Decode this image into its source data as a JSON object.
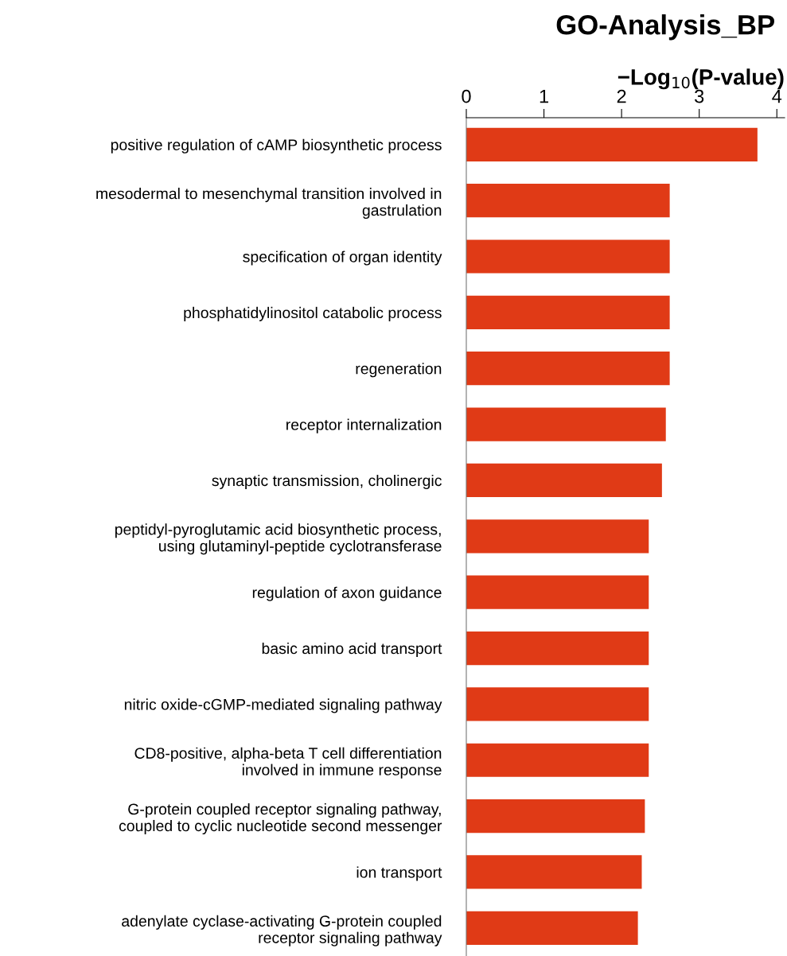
{
  "chart_data": {
    "type": "bar",
    "orientation": "horizontal",
    "title": "GO-Analysis_BP",
    "xlabel": "−Log$_{10}$(P-value)",
    "categories": [
      "positive regulation of cAMP biosynthetic process",
      "mesodermal to mesenchymal transition involved in\ngastrulation",
      "specification of organ identity",
      "phosphatidylinositol catabolic process",
      "regeneration",
      "receptor internalization",
      "synaptic transmission, cholinergic",
      "peptidyl-pyroglutamic acid biosynthetic process,\nusing glutaminyl-peptide cyclotransferase",
      "regulation of axon guidance",
      "basic amino acid transport",
      "nitric oxide-cGMP-mediated signaling pathway",
      "CD8-positive, alpha-beta T cell differentiation\ninvolved in immune response",
      "G-protein coupled receptor signaling pathway,\ncoupled to cyclic nucleotide second messenger",
      "ion transport",
      "adenylate cyclase-activating G-protein coupled\nreceptor signaling pathway"
    ],
    "values": [
      3.75,
      2.62,
      2.62,
      2.62,
      2.62,
      2.57,
      2.52,
      2.35,
      2.35,
      2.35,
      2.35,
      2.35,
      2.3,
      2.26,
      2.21
    ],
    "color": "#e03a16",
    "xlim": [
      0,
      4.1
    ],
    "xticks": [
      0,
      1,
      2,
      3,
      4
    ],
    "grid": false,
    "legend": false
  }
}
